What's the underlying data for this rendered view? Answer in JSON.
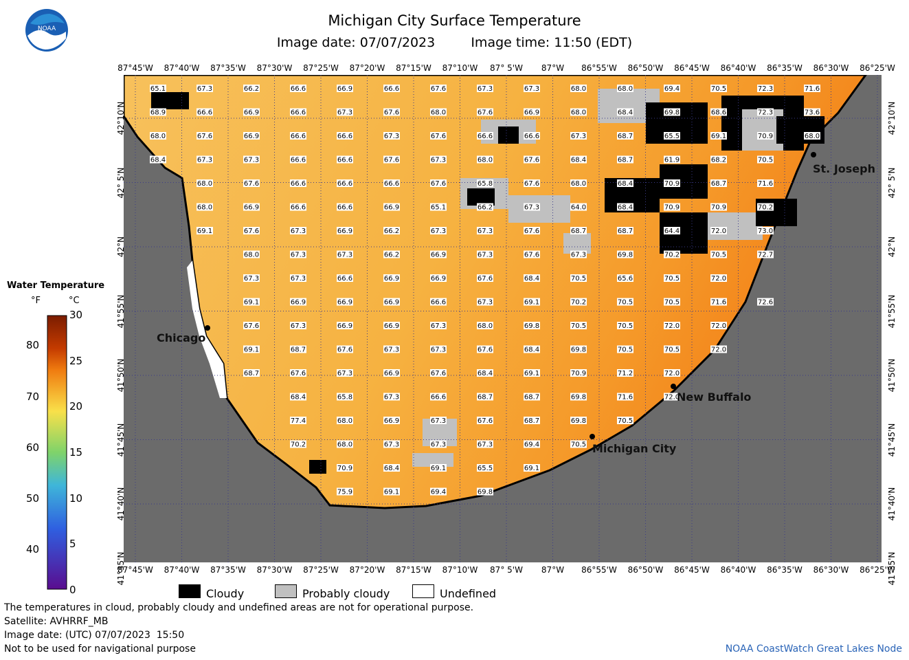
{
  "header": {
    "title": "Michigan City Surface Temperature",
    "image_date": "Image date: 07/07/2023",
    "image_time": "Image time: 11:50 (EDT)"
  },
  "map": {
    "lon_labels": [
      "87°45'W",
      "87°40'W",
      "87°35'W",
      "87°30'W",
      "87°25'W",
      "87°20'W",
      "87°15'W",
      "87°10'W",
      "87° 5'W",
      "87°W",
      "86°55'W",
      "86°50'W",
      "86°45'W",
      "86°40'W",
      "86°35'W",
      "86°30'W",
      "86°25'W"
    ],
    "lat_labels": [
      "42°10'N",
      "42° 5'N",
      "42°N",
      "41°55'N",
      "41°50'N",
      "41°45'N",
      "41°40'N",
      "41°35'N"
    ],
    "cities": [
      {
        "name": "Chicago"
      },
      {
        "name": "Michigan City"
      },
      {
        "name": "New Buffalo"
      },
      {
        "name": "St. Joseph"
      }
    ],
    "temperature_labels": [
      "65.1",
      "67.3",
      "66.2",
      "66.6",
      "66.9",
      "66.6",
      "67.6",
      "67.3",
      "67.3",
      "68.0",
      "68.0",
      "69.4",
      "70.5",
      "72.3",
      "71.6",
      "68.9",
      "66.6",
      "66.9",
      "66.6",
      "67.3",
      "67.6",
      "68.0",
      "67.6",
      "66.9",
      "68.0",
      "68.4",
      "69.8",
      "68.6",
      "72.3",
      "73.6",
      "68.0",
      "67.6",
      "66.9",
      "66.6",
      "66.6",
      "67.3",
      "67.6",
      "66.6",
      "66.6",
      "67.3",
      "68.7",
      "65.5",
      "69.1",
      "70.9",
      "68.0",
      "68.4",
      "67.3",
      "67.3",
      "66.6",
      "66.6",
      "67.6",
      "67.3",
      "68.0",
      "67.6",
      "68.4",
      "68.7",
      "61.9",
      "68.2",
      "70.5",
      "68.0",
      "67.6",
      "66.6",
      "66.6",
      "66.6",
      "67.6",
      "65.8",
      "67.6",
      "68.0",
      "68.4",
      "70.9",
      "68.7",
      "71.6",
      "68.0",
      "66.9",
      "66.6",
      "66.6",
      "66.9",
      "65.1",
      "66.2",
      "67.3",
      "64.0",
      "68.4",
      "70.9",
      "70.9",
      "70.2",
      "69.1",
      "67.6",
      "67.3",
      "66.9",
      "66.2",
      "67.3",
      "67.3",
      "67.6",
      "68.7",
      "68.7",
      "64.4",
      "72.0",
      "73.0",
      "68.0",
      "67.3",
      "67.3",
      "66.2",
      "66.9",
      "67.3",
      "67.6",
      "67.3",
      "69.8",
      "70.2",
      "70.5",
      "72.7",
      "67.3",
      "67.3",
      "66.6",
      "66.9",
      "66.9",
      "67.6",
      "68.4",
      "70.5",
      "65.6",
      "70.5",
      "72.0",
      "69.1",
      "66.9",
      "66.9",
      "66.9",
      "66.6",
      "67.3",
      "69.1",
      "70.2",
      "70.5",
      "70.5",
      "71.6",
      "72.6",
      "67.6",
      "67.3",
      "66.9",
      "66.9",
      "67.3",
      "68.0",
      "69.8",
      "70.5",
      "70.5",
      "72.0",
      "72.0",
      "69.1",
      "68.7",
      "67.6",
      "67.3",
      "67.3",
      "67.6",
      "68.4",
      "69.8",
      "70.5",
      "70.5",
      "72.0",
      "68.7",
      "67.6",
      "67.3",
      "66.9",
      "67.6",
      "68.4",
      "69.1",
      "70.9",
      "71.2",
      "72.0",
      "68.4",
      "65.8",
      "67.3",
      "66.6",
      "68.7",
      "68.7",
      "69.8",
      "71.6",
      "72.0",
      "77.4",
      "68.0",
      "66.9",
      "67.3",
      "67.6",
      "68.7",
      "69.8",
      "70.5",
      "70.2",
      "68.0",
      "67.3",
      "67.3",
      "67.3",
      "69.4",
      "70.5",
      "70.9",
      "68.4",
      "69.1",
      "65.5",
      "69.1",
      "75.9",
      "69.1",
      "69.4",
      "69.8"
    ]
  },
  "colorbar": {
    "title": "Water Temperature",
    "unit_f": "°F",
    "unit_c": "°C",
    "f_ticks": [
      "80",
      "70",
      "60",
      "50",
      "40"
    ],
    "c_ticks": [
      "30",
      "25",
      "20",
      "15",
      "10",
      "5",
      "0"
    ]
  },
  "legend": [
    {
      "label": "Cloudy",
      "color": "#000000"
    },
    {
      "label": "Probably cloudy",
      "color": "#c0c0c0"
    },
    {
      "label": "Undefined",
      "color": "#ffffff"
    }
  ],
  "footer": {
    "note": "The temperatures in cloud, probably cloudy and undefined areas are not for operational purpose.",
    "satellite": "Satellite: AVHRRF_MB",
    "utc_date": "Image date: (UTC) 07/07/2023  15:50",
    "nav_warning": "Not to be used for navigational purpose",
    "credit": "NOAA CoastWatch Great Lakes Node"
  }
}
